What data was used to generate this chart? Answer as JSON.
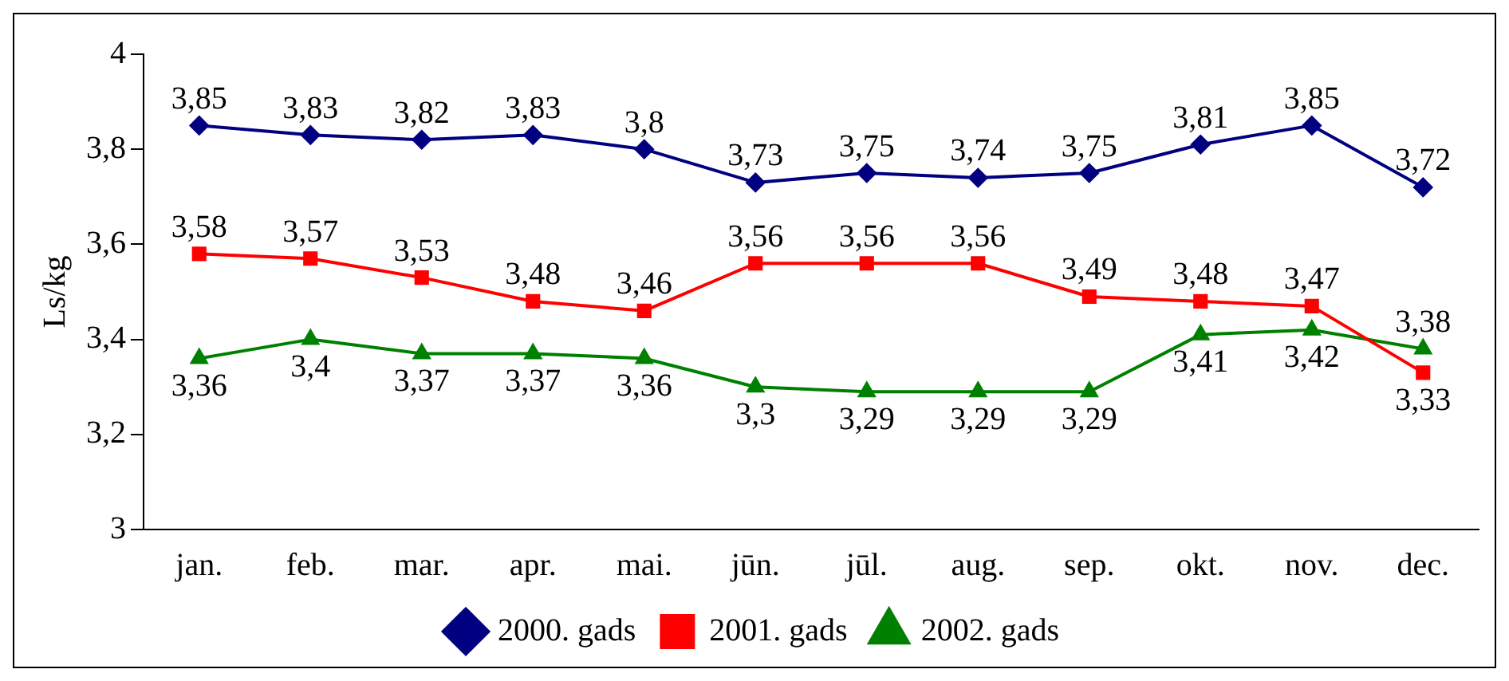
{
  "chart_data": {
    "type": "line",
    "ylabel": "Ls/kg",
    "categories": [
      "jan.",
      "feb.",
      "mar.",
      "apr.",
      "mai.",
      "jūn.",
      "jūl.",
      "aug.",
      "sep.",
      "okt.",
      "nov.",
      "dec."
    ],
    "series": [
      {
        "name": "2000. gads",
        "color": "#000080",
        "marker": "diamond",
        "values": [
          3.85,
          3.83,
          3.82,
          3.83,
          3.8,
          3.73,
          3.75,
          3.74,
          3.75,
          3.81,
          3.85,
          3.72
        ],
        "value_labels": [
          "3,85",
          "3,83",
          "3,82",
          "3,83",
          "3,8",
          "3,73",
          "3,75",
          "3,74",
          "3,75",
          "3,81",
          "3,85",
          "3,72"
        ]
      },
      {
        "name": "2001. gads",
        "color": "#ff0000",
        "marker": "square",
        "values": [
          3.58,
          3.57,
          3.53,
          3.48,
          3.46,
          3.56,
          3.56,
          3.56,
          3.49,
          3.48,
          3.47,
          3.33
        ],
        "value_labels": [
          "3,58",
          "3,57",
          "3,53",
          "3,48",
          "3,46",
          "3,56",
          "3,56",
          "3,56",
          "3,49",
          "3,48",
          "3,47",
          "3,33"
        ]
      },
      {
        "name": "2002. gads",
        "color": "#008000",
        "marker": "triangle",
        "values": [
          3.36,
          3.4,
          3.37,
          3.37,
          3.36,
          3.3,
          3.29,
          3.29,
          3.29,
          3.41,
          3.42,
          3.38
        ],
        "value_labels": [
          "3,36",
          "3,4",
          "3,37",
          "3,37",
          "3,36",
          "3,3",
          "3,29",
          "3,29",
          "3,29",
          "3,41",
          "3,42",
          "3,38"
        ]
      }
    ],
    "ylim": [
      3,
      4
    ],
    "yticks": [
      3,
      {
        "value": 3.2,
        "label": "3,2"
      },
      {
        "value": 3.4,
        "label": "3,4"
      },
      {
        "value": 3.6,
        "label": "3,6"
      },
      {
        "value": 3.8,
        "label": "3,8"
      },
      4
    ],
    "grid": false,
    "legend": "bottom",
    "line_style": "solid"
  }
}
